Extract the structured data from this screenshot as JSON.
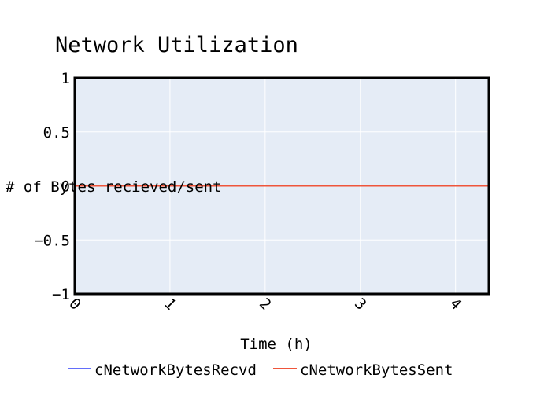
{
  "chart_data": {
    "type": "line",
    "title": "Network Utilization",
    "xlabel": "Time (h)",
    "ylabel": "# of Bytes recieved/sent",
    "x": [
      0,
      4.35
    ],
    "xlim": [
      0,
      4.35
    ],
    "ylim": [
      -1,
      1
    ],
    "x_ticks": [
      0,
      1,
      2,
      3,
      4
    ],
    "x_tick_labels": [
      "0",
      "1",
      "2",
      "3",
      "4"
    ],
    "y_ticks": [
      1,
      0.5,
      0,
      -0.5,
      -1
    ],
    "y_tick_labels": [
      "1",
      "0.5",
      "0",
      "−0.5",
      "−1"
    ],
    "grid": true,
    "legend_position": "bottom",
    "series": [
      {
        "name": "cNetworkBytesRecvd",
        "values": [
          0,
          0
        ],
        "color": "#636efa"
      },
      {
        "name": "cNetworkBytesSent",
        "values": [
          0,
          0
        ],
        "color": "#ef553b"
      }
    ],
    "plot_background": "#e5ecf6",
    "grid_color": "#ffffff"
  }
}
